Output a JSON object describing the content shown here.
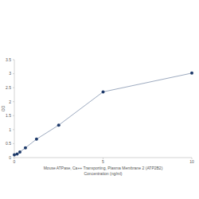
{
  "chart_data": {
    "type": "line",
    "xlabel": [
      "Mouse ATPase, Ca++ Transporting, Plasma Membrane 2 (ATP2B2)",
      "Concentration (ng/ml)"
    ],
    "ylabel": "OD",
    "x": [
      0,
      0.156,
      0.312,
      0.625,
      1.25,
      2.5,
      5,
      10
    ],
    "values": [
      0.1,
      0.13,
      0.2,
      0.35,
      0.66,
      1.16,
      2.35,
      3.02
    ],
    "color": "#1f3b6b",
    "marker": "circle",
    "xlim": [
      0,
      10
    ],
    "xticks": [
      0,
      5,
      10
    ],
    "ylim": [
      0,
      3.5
    ],
    "yticks": [
      0,
      0.5,
      1,
      1.5,
      2,
      2.5,
      3,
      3.5
    ],
    "grid": false
  }
}
